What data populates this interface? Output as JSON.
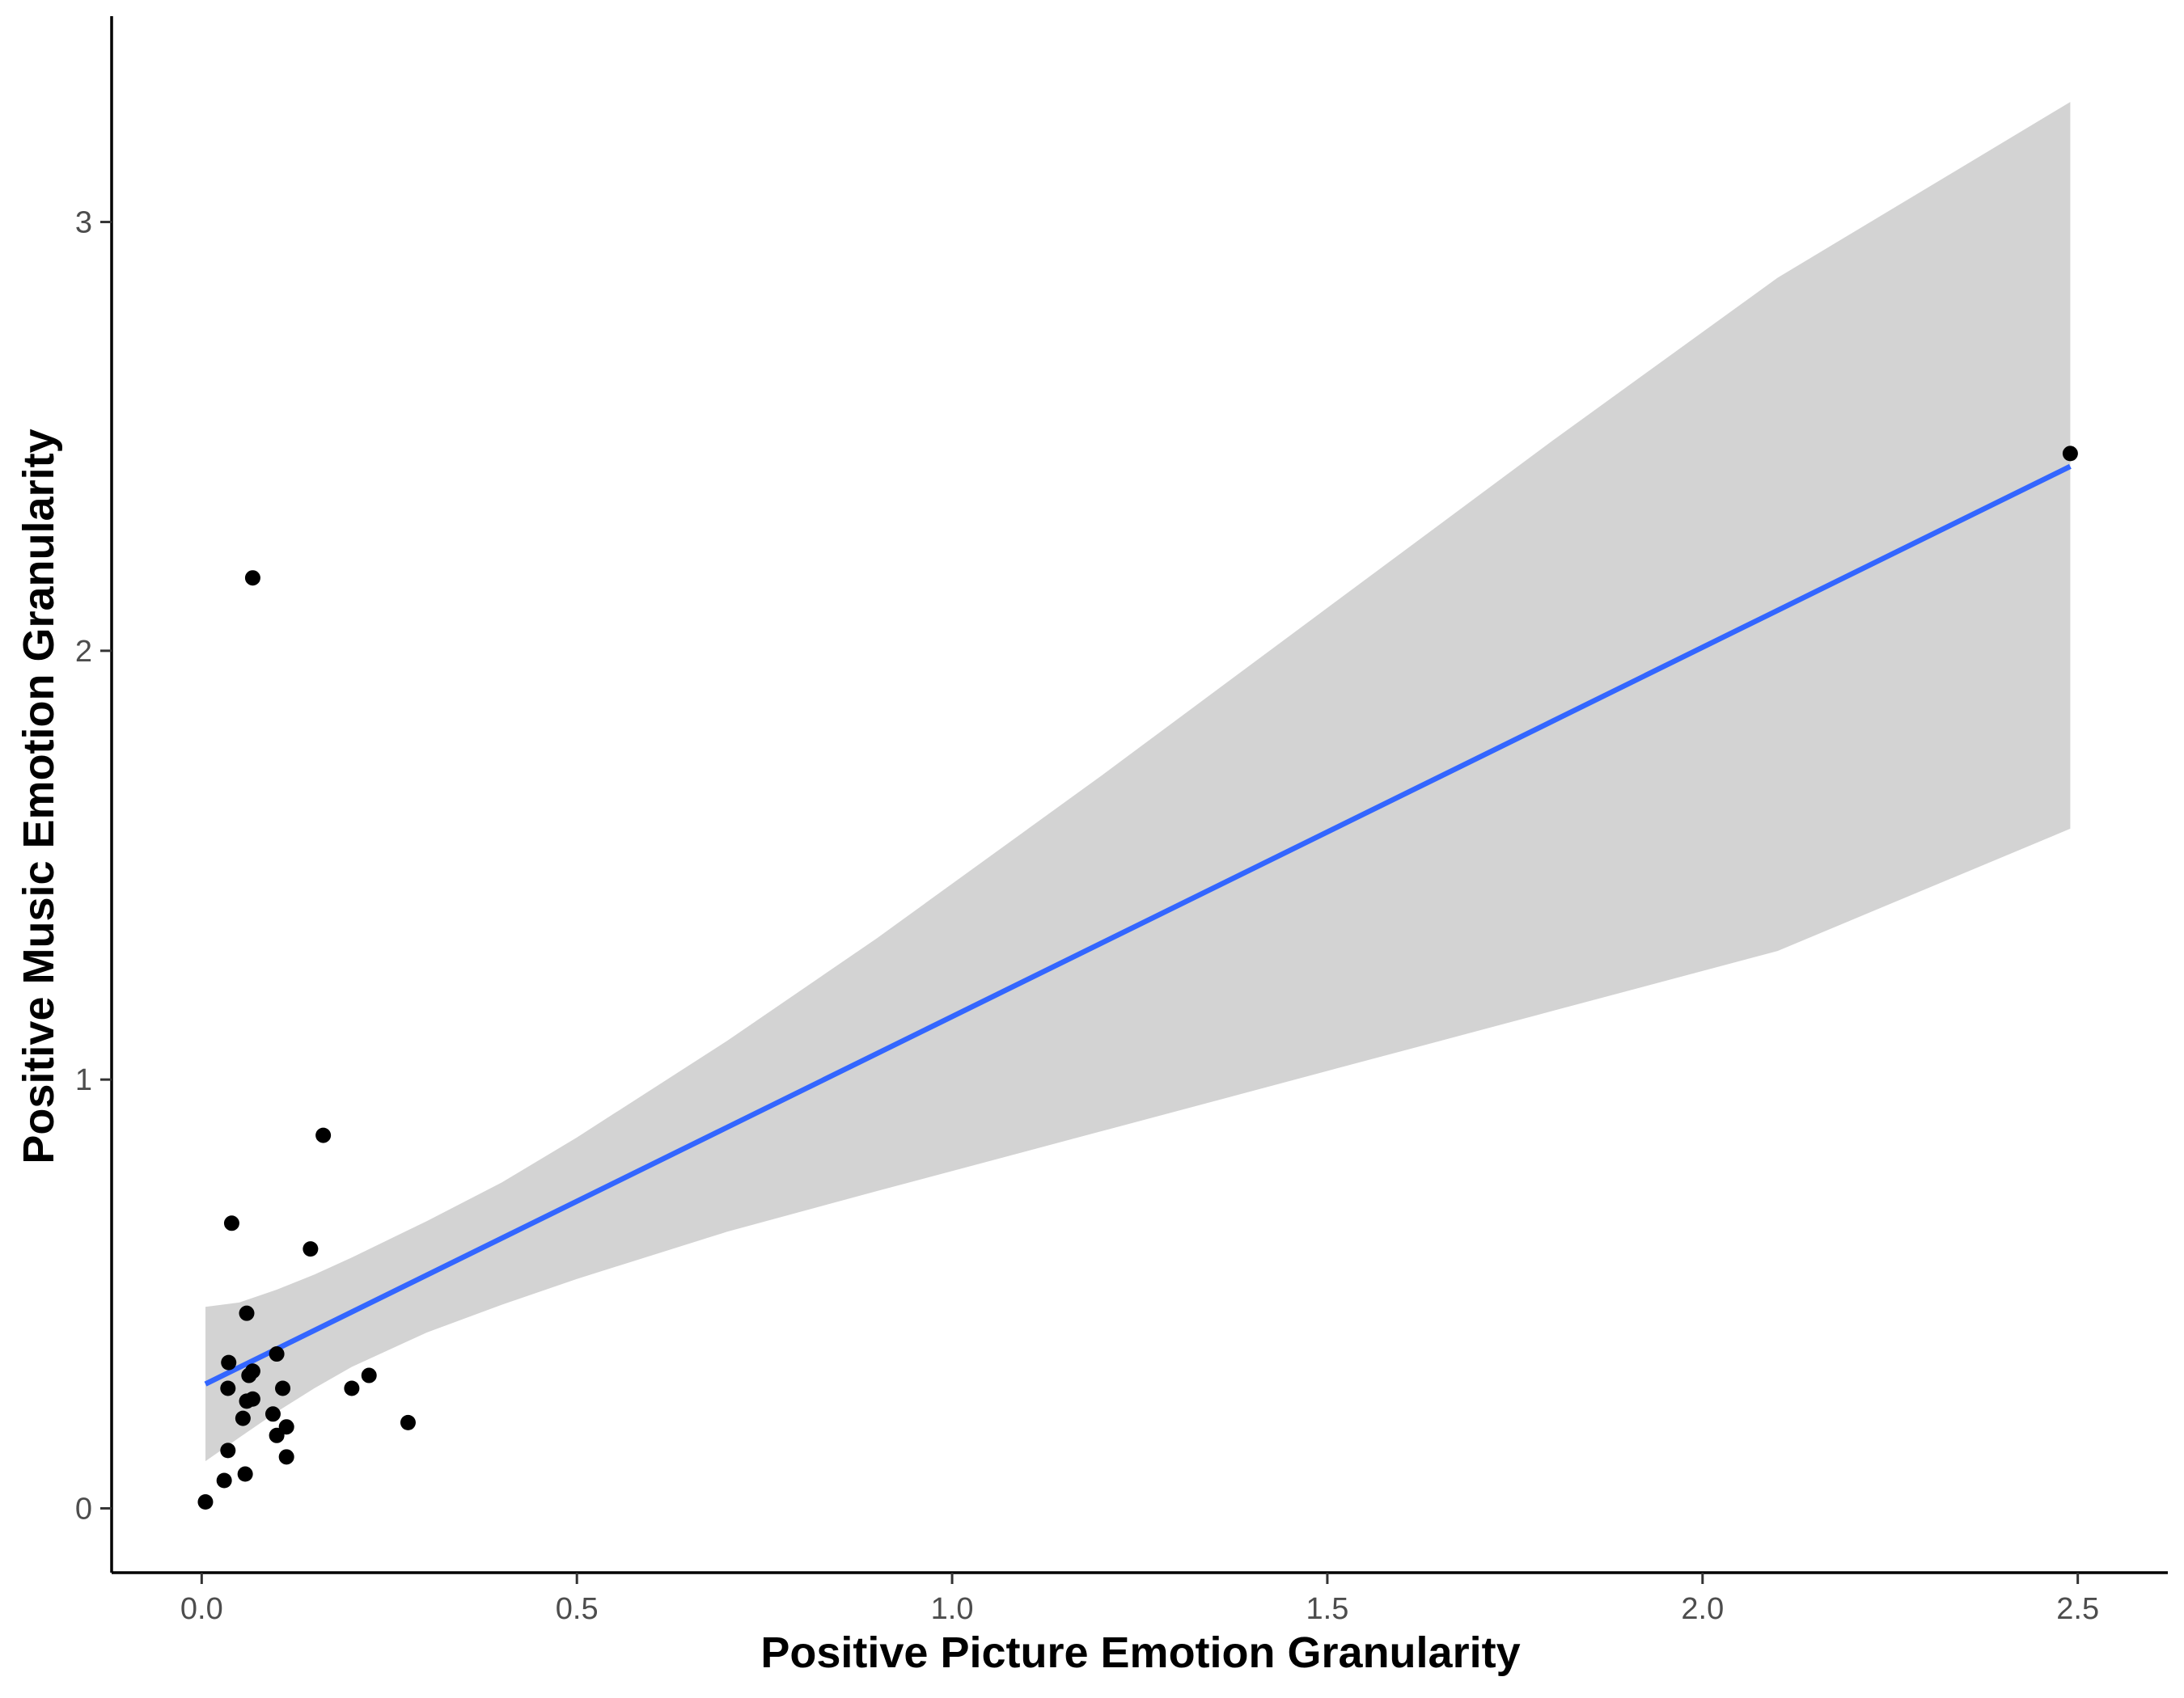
{
  "chart_data": {
    "type": "scatter",
    "xlabel": "Positive Picture Emotion Granularity",
    "ylabel": "Positive Music Emotion Granularity",
    "xlim": [
      -0.12,
      2.62
    ],
    "ylim": [
      -0.15,
      3.48
    ],
    "x_ticks": [
      0.0,
      0.5,
      1.0,
      1.5,
      2.0,
      2.5
    ],
    "x_tick_labels": [
      "0.0",
      "0.5",
      "1.0",
      "1.5",
      "2.0",
      "2.5"
    ],
    "y_ticks": [
      0,
      1,
      2,
      3
    ],
    "y_tick_labels": [
      "0",
      "1",
      "2",
      "3"
    ],
    "grid": false,
    "legend": "none",
    "points": [
      {
        "x": 0.005,
        "y": 0.015
      },
      {
        "x": 0.03,
        "y": 0.065
      },
      {
        "x": 0.035,
        "y": 0.135
      },
      {
        "x": 0.058,
        "y": 0.08
      },
      {
        "x": 0.035,
        "y": 0.28
      },
      {
        "x": 0.036,
        "y": 0.34
      },
      {
        "x": 0.04,
        "y": 0.665
      },
      {
        "x": 0.055,
        "y": 0.21
      },
      {
        "x": 0.06,
        "y": 0.455
      },
      {
        "x": 0.06,
        "y": 0.25
      },
      {
        "x": 0.063,
        "y": 0.31
      },
      {
        "x": 0.068,
        "y": 0.32
      },
      {
        "x": 0.068,
        "y": 0.255
      },
      {
        "x": 0.068,
        "y": 2.17
      },
      {
        "x": 0.095,
        "y": 0.22
      },
      {
        "x": 0.1,
        "y": 0.17
      },
      {
        "x": 0.1,
        "y": 0.36
      },
      {
        "x": 0.108,
        "y": 0.28
      },
      {
        "x": 0.113,
        "y": 0.19
      },
      {
        "x": 0.113,
        "y": 0.12
      },
      {
        "x": 0.145,
        "y": 0.605
      },
      {
        "x": 0.162,
        "y": 0.87
      },
      {
        "x": 0.2,
        "y": 0.28
      },
      {
        "x": 0.223,
        "y": 0.31
      },
      {
        "x": 0.275,
        "y": 0.2
      },
      {
        "x": 2.49,
        "y": 2.46
      }
    ],
    "regression_line": {
      "x": [
        0.005,
        2.49
      ],
      "y": [
        0.29,
        2.43
      ],
      "color": "#3366FF"
    },
    "confidence_band": {
      "x": [
        0.005,
        0.05,
        0.1,
        0.15,
        0.2,
        0.3,
        0.4,
        0.5,
        0.7,
        0.9,
        1.2,
        1.5,
        1.8,
        2.1,
        2.49
      ],
      "lower": [
        0.11,
        0.165,
        0.225,
        0.28,
        0.33,
        0.41,
        0.475,
        0.535,
        0.645,
        0.74,
        0.88,
        1.02,
        1.16,
        1.3,
        1.585
      ],
      "upper": [
        0.47,
        0.48,
        0.51,
        0.545,
        0.585,
        0.67,
        0.76,
        0.865,
        1.09,
        1.33,
        1.71,
        2.1,
        2.49,
        2.87,
        3.28
      ],
      "color": "#d3d3d3"
    },
    "point_color": "#000000"
  }
}
